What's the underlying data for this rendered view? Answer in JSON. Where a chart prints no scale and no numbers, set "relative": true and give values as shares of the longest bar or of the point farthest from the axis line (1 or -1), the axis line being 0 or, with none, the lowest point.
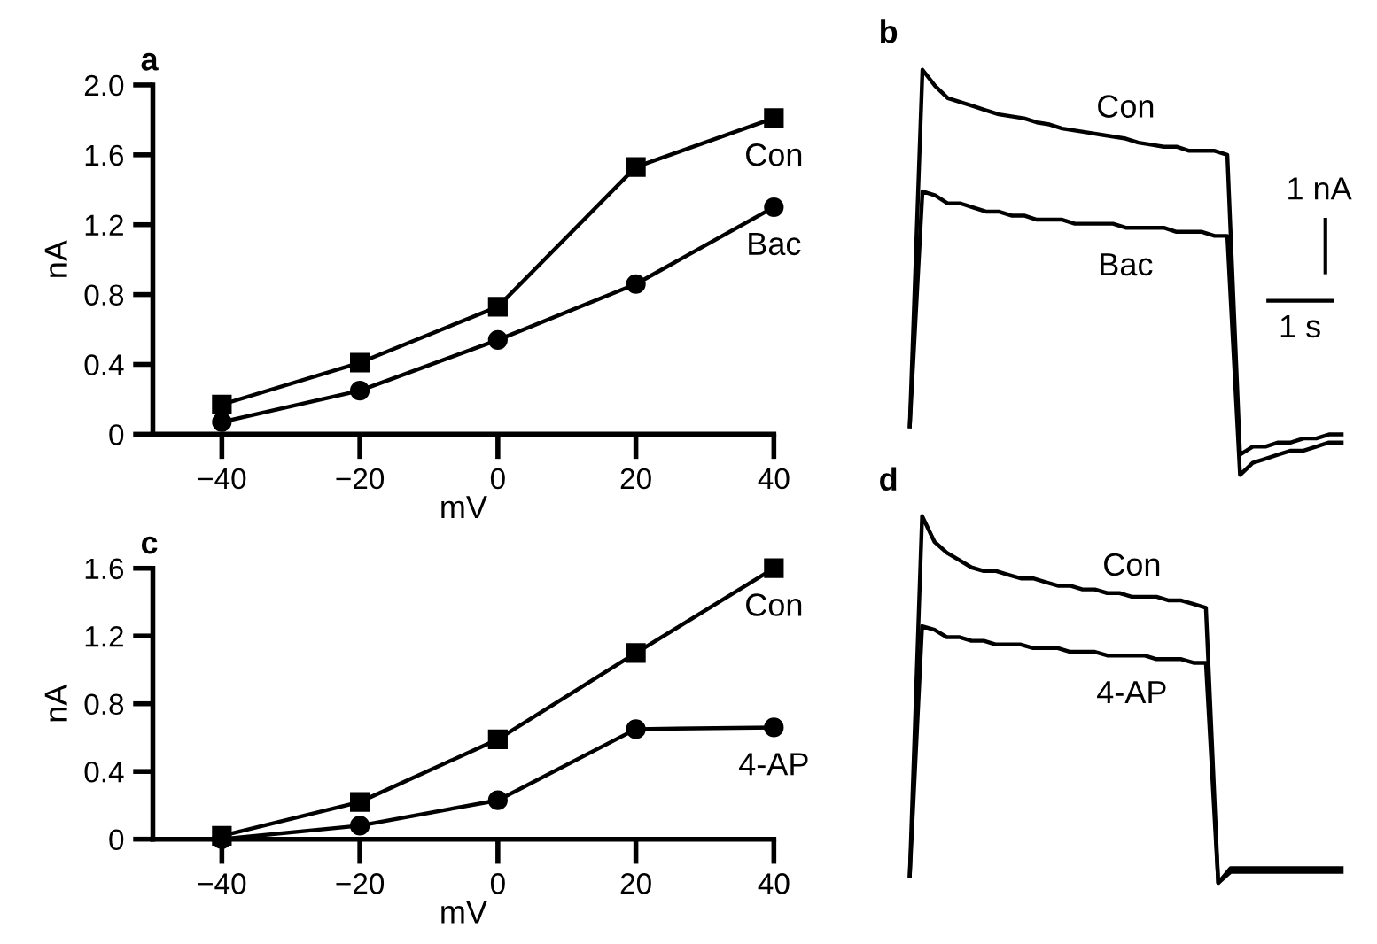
{
  "chart_data": [
    {
      "type": "line",
      "title": "a",
      "xlabel": "mV",
      "ylabel": "nA",
      "x": [
        -40,
        -20,
        0,
        20,
        40
      ],
      "series": [
        {
          "name": "Con",
          "color": "#000000",
          "marker": "square",
          "values": [
            0.17,
            0.41,
            0.73,
            1.53,
            1.81
          ]
        },
        {
          "name": "Bac",
          "color": "#000000",
          "marker": "circle",
          "values": [
            0.07,
            0.25,
            0.54,
            0.86,
            1.3
          ]
        }
      ],
      "xlim": [
        -50,
        40
      ],
      "ylim": [
        0,
        2.0
      ],
      "xticks": [
        -40,
        -20,
        0,
        20,
        40
      ],
      "yticks": [
        0,
        0.4,
        0.8,
        1.2,
        1.6,
        {
          "value": 2.0,
          "label": "2.0"
        }
      ]
    },
    {
      "type": "line",
      "title": "b",
      "relative": true,
      "annotations": [
        "1 nA",
        "1 s"
      ],
      "categories": [
        null,
        null,
        null,
        null,
        null,
        null,
        null,
        null,
        null,
        null,
        null,
        null,
        null,
        null,
        null,
        null,
        null,
        null,
        null,
        null,
        null,
        null,
        null,
        null,
        null,
        null,
        null,
        null,
        null,
        null,
        null,
        null,
        null,
        null,
        null
      ],
      "series": [
        {
          "name": "Con",
          "color": "#000000",
          "values": [
            0.12,
            1.0,
            0.96,
            0.93,
            0.92,
            0.91,
            0.9,
            0.89,
            0.885,
            0.88,
            0.87,
            0.865,
            0.855,
            0.85,
            0.845,
            0.84,
            0.835,
            0.83,
            0.82,
            0.815,
            0.81,
            0.81,
            0.8,
            0.8,
            0.8,
            0.79,
            0.05,
            0.07,
            0.07,
            0.08,
            0.08,
            0.09,
            0.09,
            0.1,
            0.1
          ]
        },
        {
          "name": "Bac",
          "color": "#000000",
          "values": [
            0.12,
            0.7,
            0.69,
            0.67,
            0.67,
            0.66,
            0.65,
            0.65,
            0.64,
            0.64,
            0.63,
            0.63,
            0.63,
            0.62,
            0.62,
            0.62,
            0.62,
            0.61,
            0.61,
            0.61,
            0.61,
            0.6,
            0.6,
            0.6,
            0.59,
            0.59,
            0,
            0.03,
            0.04,
            0.05,
            0.06,
            0.06,
            0.07,
            0.08,
            0.08
          ]
        }
      ]
    },
    {
      "type": "line",
      "title": "c",
      "xlabel": "mV",
      "ylabel": "nA",
      "x": [
        -40,
        -20,
        0,
        20,
        40
      ],
      "series": [
        {
          "name": "Con",
          "color": "#000000",
          "marker": "square",
          "values": [
            0.02,
            0.22,
            0.59,
            1.1,
            1.6
          ]
        },
        {
          "name": "4-AP",
          "color": "#000000",
          "marker": "circle",
          "values": [
            0,
            0.08,
            0.23,
            0.65,
            0.66
          ]
        }
      ],
      "xlim": [
        -50,
        40
      ],
      "ylim": [
        0,
        1.6
      ],
      "xticks": [
        -40,
        -20,
        0,
        20,
        40
      ],
      "yticks": [
        0,
        0.4,
        0.8,
        1.2,
        1.6
      ]
    },
    {
      "type": "line",
      "title": "d",
      "relative": true,
      "categories": [
        null,
        null,
        null,
        null,
        null,
        null,
        null,
        null,
        null,
        null,
        null,
        null,
        null,
        null,
        null,
        null,
        null,
        null,
        null,
        null,
        null,
        null,
        null,
        null,
        null,
        null,
        null,
        null,
        null,
        null,
        null,
        null,
        null,
        null,
        null,
        null
      ],
      "series": [
        {
          "name": "Con",
          "color": "#000000",
          "values": [
            0.02,
            1.0,
            0.93,
            0.9,
            0.88,
            0.86,
            0.85,
            0.85,
            0.84,
            0.83,
            0.83,
            0.82,
            0.81,
            0.81,
            0.8,
            0.8,
            0.79,
            0.79,
            0.78,
            0.78,
            0.78,
            0.77,
            0.77,
            0.76,
            0.75,
            0,
            0.04,
            0.04,
            0.04,
            0.04,
            0.04,
            0.04,
            0.04,
            0.04,
            0.04,
            0.04
          ]
        },
        {
          "name": "4-AP",
          "color": "#000000",
          "values": [
            0.02,
            0.7,
            0.69,
            0.67,
            0.67,
            0.66,
            0.66,
            0.65,
            0.65,
            0.65,
            0.64,
            0.64,
            0.64,
            0.63,
            0.63,
            0.63,
            0.62,
            0.62,
            0.62,
            0.62,
            0.61,
            0.61,
            0.61,
            0.6,
            0.6,
            0,
            0.03,
            0.03,
            0.03,
            0.03,
            0.03,
            0.03,
            0.03,
            0.03,
            0.03,
            0.03
          ]
        }
      ]
    }
  ]
}
